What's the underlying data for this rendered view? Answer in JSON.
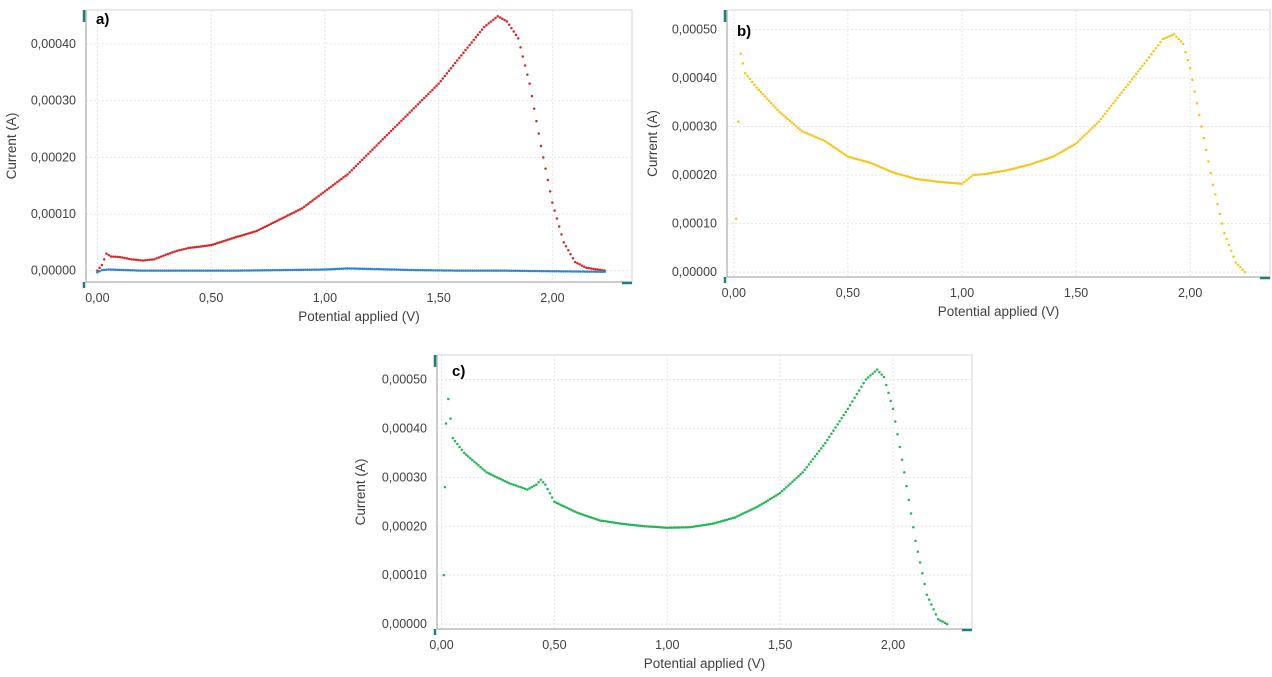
{
  "colors": {
    "red": "#d62728",
    "blue": "#2b83d6",
    "yellow": "#f5c518",
    "green": "#22b455",
    "axis_cap": "#1f7f7f"
  },
  "chart_data": [
    {
      "id": "a",
      "panel_label": "a)",
      "type": "scatter",
      "xlabel": "Potential applied (V)",
      "ylabel": "Current (A)",
      "xlim": [
        -0.05,
        2.35
      ],
      "ylim": [
        -2e-05,
        0.00046
      ],
      "x_ticks": [
        0.0,
        0.5,
        1.0,
        1.5,
        2.0
      ],
      "x_tick_labels": [
        "0,00",
        "0,50",
        "1,00",
        "1,50",
        "2,00"
      ],
      "y_ticks": [
        0.0,
        0.0001,
        0.0002,
        0.0003,
        0.0004
      ],
      "y_tick_labels": [
        "0,00000",
        "0,00010",
        "0,00020",
        "0,00030",
        "0,00040"
      ],
      "grid": true,
      "series": [
        {
          "color": "red",
          "points": [
            [
              0.0,
              0.0
            ],
            [
              0.02,
              1e-05
            ],
            [
              0.04,
              3e-05
            ],
            [
              0.06,
              2.5e-05
            ],
            [
              0.1,
              2.4e-05
            ],
            [
              0.15,
              2e-05
            ],
            [
              0.2,
              1.8e-05
            ],
            [
              0.25,
              2e-05
            ],
            [
              0.3,
              2.8e-05
            ],
            [
              0.35,
              3.5e-05
            ],
            [
              0.4,
              4e-05
            ],
            [
              0.5,
              4.5e-05
            ],
            [
              0.6,
              5.8e-05
            ],
            [
              0.7,
              7e-05
            ],
            [
              0.8,
              9e-05
            ],
            [
              0.9,
              0.00011
            ],
            [
              1.0,
              0.00014
            ],
            [
              1.1,
              0.00017
            ],
            [
              1.2,
              0.00021
            ],
            [
              1.3,
              0.00025
            ],
            [
              1.4,
              0.00029
            ],
            [
              1.5,
              0.00033
            ],
            [
              1.6,
              0.00038
            ],
            [
              1.7,
              0.00043
            ],
            [
              1.76,
              0.000449
            ],
            [
              1.8,
              0.00044
            ],
            [
              1.85,
              0.00041
            ],
            [
              1.9,
              0.00033
            ],
            [
              1.95,
              0.00022
            ],
            [
              2.0,
              0.00012
            ],
            [
              2.05,
              5e-05
            ],
            [
              2.1,
              1.5e-05
            ],
            [
              2.15,
              5e-06
            ],
            [
              2.2,
              2e-06
            ],
            [
              2.23,
              0.0
            ]
          ]
        },
        {
          "color": "blue",
          "points": [
            [
              0.0,
              -3e-06
            ],
            [
              0.02,
              1e-06
            ],
            [
              0.05,
              2e-06
            ],
            [
              0.2,
              0.0
            ],
            [
              0.4,
              0.0
            ],
            [
              0.6,
              0.0
            ],
            [
              0.8,
              1e-06
            ],
            [
              1.0,
              2e-06
            ],
            [
              1.1,
              4e-06
            ],
            [
              1.2,
              3e-06
            ],
            [
              1.4,
              1e-06
            ],
            [
              1.6,
              0.0
            ],
            [
              1.8,
              0.0
            ],
            [
              2.0,
              -1e-06
            ],
            [
              2.23,
              -2e-06
            ]
          ]
        }
      ]
    },
    {
      "id": "b",
      "panel_label": "b)",
      "type": "scatter",
      "xlabel": "Potential applied (V)",
      "ylabel": "Current (A)",
      "xlim": [
        -0.03,
        2.35
      ],
      "ylim": [
        -1e-05,
        0.00054
      ],
      "x_ticks": [
        0.0,
        0.5,
        1.0,
        1.5,
        2.0
      ],
      "x_tick_labels": [
        "0,00",
        "0,50",
        "1,00",
        "1,50",
        "2,00"
      ],
      "y_ticks": [
        0.0,
        0.0001,
        0.0002,
        0.0003,
        0.0004,
        0.0005
      ],
      "y_tick_labels": [
        "0,00000",
        "0,00010",
        "0,00020",
        "0,00030",
        "0,00040",
        "0,00050"
      ],
      "grid": true,
      "series": [
        {
          "color": "yellow",
          "points": [
            [
              0.01,
              0.00011
            ],
            [
              0.02,
              0.00031
            ],
            [
              0.03,
              0.00045
            ],
            [
              0.05,
              0.00041
            ],
            [
              0.1,
              0.00038
            ],
            [
              0.2,
              0.00033
            ],
            [
              0.3,
              0.00029
            ],
            [
              0.35,
              0.00028
            ],
            [
              0.4,
              0.00027
            ],
            [
              0.5,
              0.000238
            ],
            [
              0.6,
              0.000225
            ],
            [
              0.7,
              0.000205
            ],
            [
              0.8,
              0.000192
            ],
            [
              0.9,
              0.000186
            ],
            [
              1.0,
              0.000182
            ],
            [
              1.05,
              0.0002
            ],
            [
              1.1,
              0.000202
            ],
            [
              1.2,
              0.00021
            ],
            [
              1.3,
              0.000222
            ],
            [
              1.4,
              0.000238
            ],
            [
              1.5,
              0.000265
            ],
            [
              1.6,
              0.00031
            ],
            [
              1.7,
              0.00037
            ],
            [
              1.8,
              0.00043
            ],
            [
              1.88,
              0.00048
            ],
            [
              1.93,
              0.00049
            ],
            [
              1.97,
              0.00047
            ],
            [
              2.0,
              0.00042
            ],
            [
              2.05,
              0.0003
            ],
            [
              2.1,
              0.00018
            ],
            [
              2.15,
              8e-05
            ],
            [
              2.2,
              2e-05
            ],
            [
              2.24,
              0.0
            ]
          ]
        }
      ]
    },
    {
      "id": "c",
      "panel_label": "c)",
      "type": "scatter",
      "xlabel": "Potential applied (V)",
      "ylabel": "Current (A)",
      "xlim": [
        -0.02,
        2.35
      ],
      "ylim": [
        -1e-05,
        0.00055
      ],
      "x_ticks": [
        0.0,
        0.5,
        1.0,
        1.5,
        2.0
      ],
      "x_tick_labels": [
        "0,00",
        "0,50",
        "1,00",
        "1,50",
        "2,00"
      ],
      "y_ticks": [
        0.0,
        0.0001,
        0.0002,
        0.0003,
        0.0004,
        0.0005
      ],
      "y_tick_labels": [
        "0,00000",
        "0,00010",
        "0,00020",
        "0,00030",
        "0,00040",
        "0,00050"
      ],
      "grid": true,
      "series": [
        {
          "color": "green",
          "points": [
            [
              0.01,
              0.0001
            ],
            [
              0.015,
              0.00028
            ],
            [
              0.02,
              0.00041
            ],
            [
              0.03,
              0.00046
            ],
            [
              0.05,
              0.00038
            ],
            [
              0.1,
              0.00035
            ],
            [
              0.2,
              0.00031
            ],
            [
              0.3,
              0.000288
            ],
            [
              0.35,
              0.00028
            ],
            [
              0.38,
              0.000275
            ],
            [
              0.42,
              0.000285
            ],
            [
              0.44,
              0.000295
            ],
            [
              0.46,
              0.000285
            ],
            [
              0.5,
              0.00025
            ],
            [
              0.6,
              0.000228
            ],
            [
              0.7,
              0.000212
            ],
            [
              0.8,
              0.000205
            ],
            [
              0.9,
              0.0002
            ],
            [
              1.0,
              0.000197
            ],
            [
              1.1,
              0.000198
            ],
            [
              1.2,
              0.000205
            ],
            [
              1.3,
              0.000218
            ],
            [
              1.4,
              0.00024
            ],
            [
              1.5,
              0.000268
            ],
            [
              1.6,
              0.00031
            ],
            [
              1.7,
              0.00037
            ],
            [
              1.8,
              0.00044
            ],
            [
              1.88,
              0.0005
            ],
            [
              1.93,
              0.00052
            ],
            [
              1.96,
              0.000505
            ],
            [
              2.0,
              0.00044
            ],
            [
              2.05,
              0.00031
            ],
            [
              2.1,
              0.00017
            ],
            [
              2.15,
              6e-05
            ],
            [
              2.2,
              1e-05
            ],
            [
              2.24,
              0.0
            ]
          ]
        }
      ]
    }
  ]
}
